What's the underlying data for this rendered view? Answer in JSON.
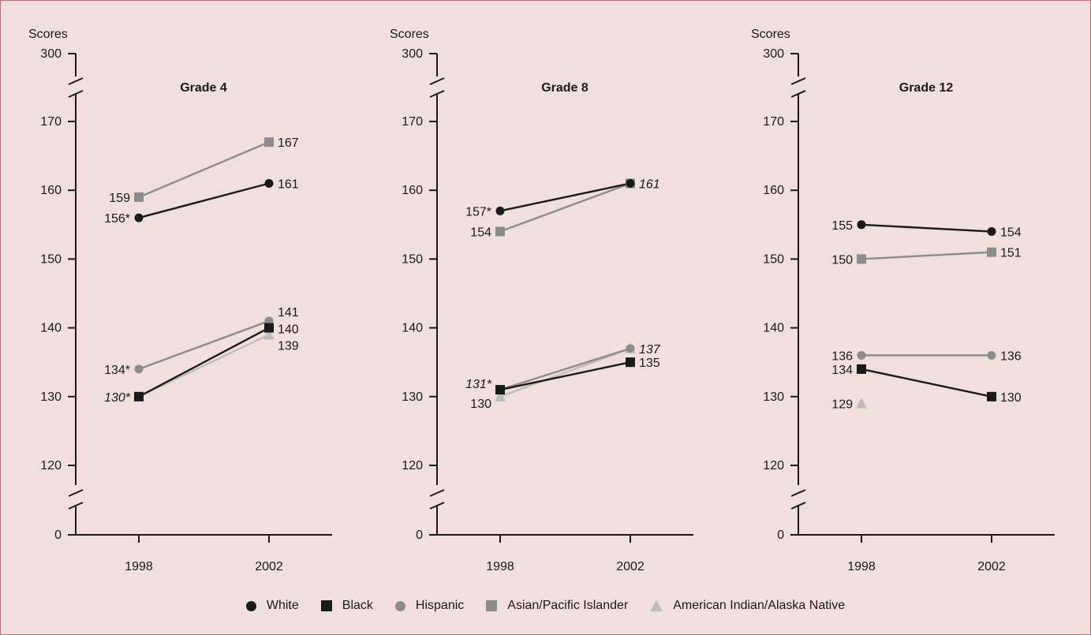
{
  "chart_data": [
    {
      "type": "line",
      "title": "Grade 4",
      "ylabel": "Scores",
      "categories": [
        "1998",
        "2002"
      ],
      "y_ticks": [
        "300",
        "170",
        "160",
        "150",
        "140",
        "130",
        "120",
        "0"
      ],
      "axis_breaks": [
        "between 170 and 300",
        "between 0 and 120"
      ],
      "ylim": [
        115,
        172
      ],
      "series": [
        {
          "name": "White",
          "marker": "circle",
          "color": "#1a1a1a",
          "values": [
            156,
            161
          ],
          "labels": [
            "156*",
            "161"
          ],
          "italic": [
            false,
            false
          ]
        },
        {
          "name": "Black",
          "marker": "square",
          "color": "#1a1a1a",
          "values": [
            130,
            140
          ],
          "labels": [
            "",
            "140"
          ],
          "italic": [
            false,
            false
          ]
        },
        {
          "name": "Hispanic",
          "marker": "circle",
          "color": "#8c8c8c",
          "values": [
            134,
            141
          ],
          "labels": [
            "134*",
            "141"
          ],
          "italic": [
            false,
            false
          ]
        },
        {
          "name": "Asian/Pacific Islander",
          "marker": "square",
          "color": "#8c8c8c",
          "values": [
            159,
            167
          ],
          "labels": [
            "159",
            "167"
          ],
          "italic": [
            false,
            false
          ]
        },
        {
          "name": "American Indian/Alaska Native",
          "marker": "triangle",
          "color": "#bdbdbd",
          "values": [
            130,
            139
          ],
          "labels": [
            "130*",
            "139"
          ],
          "italic": [
            true,
            false
          ]
        }
      ]
    },
    {
      "type": "line",
      "title": "Grade 8",
      "ylabel": "Scores",
      "categories": [
        "1998",
        "2002"
      ],
      "y_ticks": [
        "300",
        "170",
        "160",
        "150",
        "140",
        "130",
        "120",
        "0"
      ],
      "axis_breaks": [
        "between 170 and 300",
        "between 0 and 120"
      ],
      "ylim": [
        115,
        172
      ],
      "series": [
        {
          "name": "White",
          "marker": "circle",
          "color": "#1a1a1a",
          "values": [
            157,
            161
          ],
          "labels": [
            "157*",
            "161"
          ],
          "italic": [
            false,
            true
          ]
        },
        {
          "name": "Black",
          "marker": "square",
          "color": "#1a1a1a",
          "values": [
            131,
            135
          ],
          "labels": [
            "131*",
            "135"
          ],
          "italic": [
            true,
            false
          ]
        },
        {
          "name": "Hispanic",
          "marker": "circle",
          "color": "#8c8c8c",
          "values": [
            131,
            137
          ],
          "labels": [
            "",
            "137"
          ],
          "italic": [
            false,
            true
          ]
        },
        {
          "name": "Asian/Pacific Islander",
          "marker": "square",
          "color": "#8c8c8c",
          "values": [
            154,
            161
          ],
          "labels": [
            "154",
            ""
          ],
          "italic": [
            false,
            false
          ]
        },
        {
          "name": "American Indian/Alaska Native",
          "marker": "triangle",
          "color": "#bdbdbd",
          "values": [
            130,
            137
          ],
          "labels": [
            "130",
            ""
          ],
          "italic": [
            false,
            false
          ]
        }
      ]
    },
    {
      "type": "line",
      "title": "Grade 12",
      "ylabel": "Scores",
      "categories": [
        "1998",
        "2002"
      ],
      "y_ticks": [
        "300",
        "170",
        "160",
        "150",
        "140",
        "130",
        "120",
        "0"
      ],
      "axis_breaks": [
        "between 170 and 300",
        "between 0 and 120"
      ],
      "ylim": [
        115,
        172
      ],
      "series": [
        {
          "name": "White",
          "marker": "circle",
          "color": "#1a1a1a",
          "values": [
            155,
            154
          ],
          "labels": [
            "155",
            "154"
          ],
          "italic": [
            false,
            false
          ]
        },
        {
          "name": "Black",
          "marker": "square",
          "color": "#1a1a1a",
          "values": [
            134,
            130
          ],
          "labels": [
            "134",
            "130"
          ],
          "italic": [
            false,
            false
          ]
        },
        {
          "name": "Hispanic",
          "marker": "circle",
          "color": "#8c8c8c",
          "values": [
            136,
            136
          ],
          "labels": [
            "136",
            "136"
          ],
          "italic": [
            false,
            false
          ]
        },
        {
          "name": "Asian/Pacific Islander",
          "marker": "square",
          "color": "#8c8c8c",
          "values": [
            150,
            151
          ],
          "labels": [
            "150",
            "151"
          ],
          "italic": [
            false,
            false
          ]
        },
        {
          "name": "American Indian/Alaska Native",
          "marker": "triangle",
          "color": "#bdbdbd",
          "values": [
            129,
            null
          ],
          "labels": [
            "129",
            ""
          ],
          "italic": [
            false,
            false
          ]
        }
      ]
    }
  ],
  "legend": {
    "items": [
      {
        "label": "White",
        "marker": "circle",
        "color": "#1a1a1a"
      },
      {
        "label": "Black",
        "marker": "square",
        "color": "#1a1a1a"
      },
      {
        "label": "Hispanic",
        "marker": "circle",
        "color": "#8c8c8c"
      },
      {
        "label": "Asian/Pacific Islander",
        "marker": "square",
        "color": "#8c8c8c"
      },
      {
        "label": "American Indian/Alaska Native",
        "marker": "triangle",
        "color": "#bdbdbd"
      }
    ]
  },
  "colors": {
    "background": "#f1dfdd",
    "border": "#b5737d",
    "axis": "#1a1a1a"
  }
}
